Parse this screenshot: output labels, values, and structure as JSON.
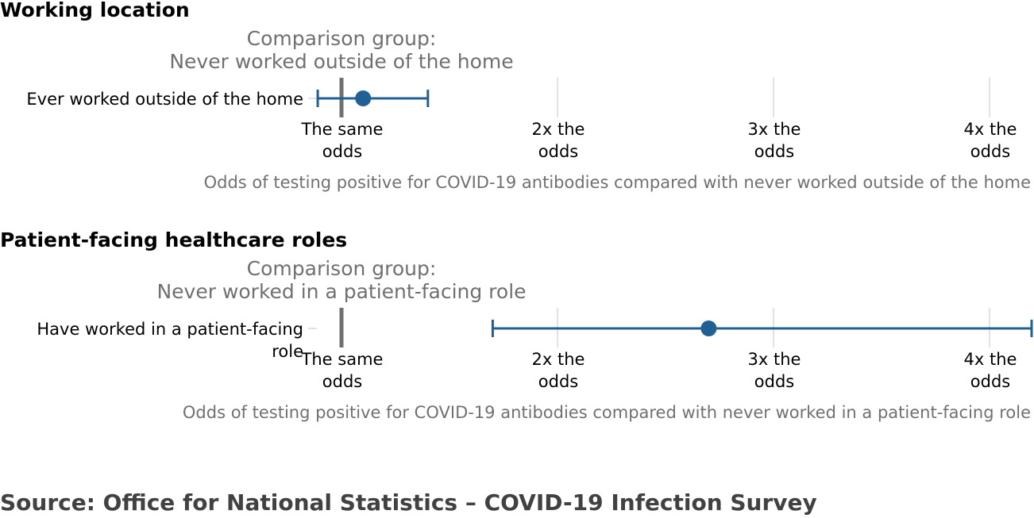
{
  "colors": {
    "estimate": "#206095",
    "reference_line": "#707070",
    "gridline": "#d9d9d9",
    "heading": "#000000",
    "muted_text": "#707070",
    "source_text": "#414042"
  },
  "source": "Source: Office for National Statistics – COVID-19 Infection Survey",
  "chart_data": [
    {
      "type": "forest",
      "title": "Working location",
      "comparison_line1": "Comparison group:",
      "comparison_line2": "Never worked outside of the home",
      "xlabel": "Odds of testing positive for COVID-19 antibodies compared with never worked outside of the home",
      "xlim": [
        0.9,
        4.2
      ],
      "reference_value": 1,
      "ticks": [
        {
          "value": 1,
          "line1": "The same",
          "line2": "odds"
        },
        {
          "value": 2,
          "line1": "2x the",
          "line2": "odds"
        },
        {
          "value": 3,
          "line1": "3x the",
          "line2": "odds"
        },
        {
          "value": 4,
          "line1": "4x the",
          "line2": "odds"
        }
      ],
      "rows": [
        {
          "label_lines": [
            "Ever worked outside of the home"
          ],
          "estimate": 1.1,
          "lower": 0.89,
          "upper": 1.4
        }
      ]
    },
    {
      "type": "forest",
      "title": "Patient-facing healthcare roles",
      "comparison_line1": "Comparison group:",
      "comparison_line2": "Never worked in a patient-facing role",
      "xlabel": "Odds of testing positive for COVID-19 antibodies compared with never worked in a patient-facing role",
      "xlim": [
        0.9,
        4.2
      ],
      "reference_value": 1,
      "ticks": [
        {
          "value": 1,
          "line1": "The same",
          "line2": "odds"
        },
        {
          "value": 2,
          "line1": "2x the",
          "line2": "odds"
        },
        {
          "value": 3,
          "line1": "3x the",
          "line2": "odds"
        },
        {
          "value": 4,
          "line1": "4x the",
          "line2": "odds"
        }
      ],
      "rows": [
        {
          "label_lines": [
            "Have worked in a patient-facing",
            "role"
          ],
          "estimate": 2.7,
          "lower": 1.7,
          "upper": 4.2
        }
      ]
    }
  ]
}
